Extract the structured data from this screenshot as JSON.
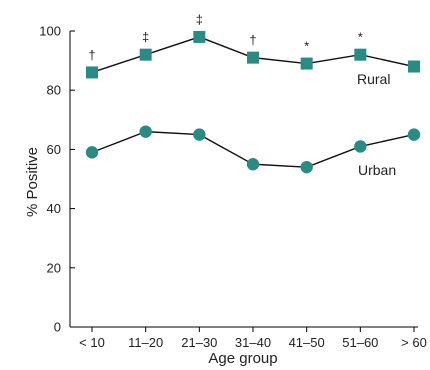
{
  "chart_data": {
    "type": "line",
    "xlabel": "Age group",
    "ylabel": "% Positive",
    "categories": [
      "< 10",
      "11–20",
      "21–30",
      "31–40",
      "41–50",
      "51–60",
      "> 60"
    ],
    "ylim": [
      0,
      100
    ],
    "yticks": [
      0,
      20,
      40,
      60,
      80,
      100
    ],
    "grid": false,
    "series": [
      {
        "name": "Rural",
        "marker": "square",
        "color": "#2a8a84",
        "values": [
          86,
          92,
          98,
          91,
          89,
          92,
          88
        ],
        "annotations": [
          "†",
          "‡",
          "‡",
          "†",
          "*",
          "*",
          ""
        ]
      },
      {
        "name": "Urban",
        "marker": "circle",
        "color": "#2a8a84",
        "values": [
          59,
          66,
          65,
          55,
          54,
          61,
          65
        ],
        "annotations": [
          "",
          "",
          "",
          "",
          "",
          "",
          ""
        ]
      }
    ]
  }
}
